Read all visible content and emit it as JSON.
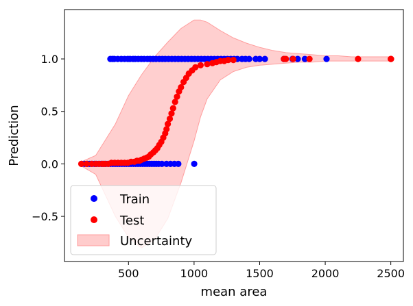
{
  "chart_data": {
    "type": "scatter",
    "xlabel": "mean area",
    "ylabel": "Prediction",
    "xlim": [
      12,
      2596
    ],
    "ylim": [
      -0.93,
      1.47
    ],
    "xticks": [
      500,
      1000,
      1500,
      2000,
      2500
    ],
    "yticks": [
      -0.5,
      0.0,
      0.5,
      1.0
    ],
    "xtick_labels": [
      "500",
      "1000",
      "1500",
      "2000",
      "2500"
    ],
    "ytick_labels": [
      "−0.5",
      "0.0",
      "0.5",
      "1.0"
    ],
    "grid": false,
    "legend_position": "lower-left",
    "colors": {
      "train": "#0000ff",
      "test": "#ff0000",
      "uncertainty": "#ffcccc",
      "uncertainty_edge": "#ff9e9e",
      "train_overlap": "#5a1ab4"
    },
    "series": [
      {
        "name": "Train",
        "kind": "scatter",
        "color": "#0000ff",
        "points": [
          [
            362,
            1
          ],
          [
            378,
            1
          ],
          [
            392,
            1
          ],
          [
            418,
            1
          ],
          [
            445,
            1
          ],
          [
            470,
            1
          ],
          [
            495,
            1
          ],
          [
            512,
            1
          ],
          [
            535,
            1
          ],
          [
            552,
            1
          ],
          [
            575,
            1
          ],
          [
            598,
            1
          ],
          [
            620,
            1
          ],
          [
            645,
            1
          ],
          [
            665,
            1
          ],
          [
            688,
            1
          ],
          [
            710,
            1
          ],
          [
            735,
            1
          ],
          [
            758,
            1
          ],
          [
            780,
            1
          ],
          [
            805,
            1
          ],
          [
            830,
            1
          ],
          [
            855,
            1
          ],
          [
            880,
            1
          ],
          [
            905,
            1
          ],
          [
            930,
            1
          ],
          [
            955,
            1
          ],
          [
            980,
            1
          ],
          [
            1005,
            1
          ],
          [
            1030,
            1
          ],
          [
            1055,
            1
          ],
          [
            1080,
            1
          ],
          [
            1105,
            1
          ],
          [
            1130,
            1
          ],
          [
            1155,
            1
          ],
          [
            1180,
            1
          ],
          [
            1205,
            1
          ],
          [
            1230,
            1
          ],
          [
            1255,
            1
          ],
          [
            1280,
            1
          ],
          [
            1305,
            1
          ],
          [
            1330,
            1
          ],
          [
            1365,
            1
          ],
          [
            1392,
            1
          ],
          [
            1420,
            1
          ],
          [
            1470,
            1
          ],
          [
            1500,
            1
          ],
          [
            1540,
            1
          ],
          [
            1685,
            1
          ],
          [
            1750,
            1
          ],
          [
            1790,
            1
          ],
          [
            1845,
            1
          ],
          [
            2010,
            1
          ],
          [
            143,
            0
          ],
          [
            165,
            0
          ],
          [
            188,
            0
          ],
          [
            205,
            0
          ],
          [
            222,
            0
          ],
          [
            240,
            0
          ],
          [
            258,
            0
          ],
          [
            275,
            0
          ],
          [
            292,
            0
          ],
          [
            310,
            0
          ],
          [
            328,
            0
          ],
          [
            345,
            0
          ],
          [
            362,
            0
          ],
          [
            380,
            0
          ],
          [
            398,
            0
          ],
          [
            415,
            0
          ],
          [
            432,
            0
          ],
          [
            450,
            0
          ],
          [
            468,
            0
          ],
          [
            485,
            0
          ],
          [
            503,
            0
          ],
          [
            520,
            0
          ],
          [
            538,
            0
          ],
          [
            555,
            0
          ],
          [
            572,
            0
          ],
          [
            590,
            0
          ],
          [
            608,
            0
          ],
          [
            625,
            0
          ],
          [
            642,
            0
          ],
          [
            660,
            0
          ],
          [
            678,
            0
          ],
          [
            695,
            0
          ],
          [
            712,
            0
          ],
          [
            730,
            0
          ],
          [
            755,
            0
          ],
          [
            790,
            0
          ],
          [
            820,
            0
          ],
          [
            850,
            0
          ],
          [
            880,
            0
          ],
          [
            1001,
            0
          ]
        ]
      },
      {
        "name": "Test",
        "kind": "scatter",
        "color": "#ff0000",
        "points": [
          [
            140,
            0.0
          ],
          [
            180,
            0.0
          ],
          [
            220,
            0.0
          ],
          [
            250,
            0.0
          ],
          [
            275,
            0.0
          ],
          [
            300,
            0.0
          ],
          [
            320,
            0.0
          ],
          [
            345,
            0.0
          ],
          [
            370,
            0.01
          ],
          [
            395,
            0.01
          ],
          [
            420,
            0.01
          ],
          [
            445,
            0.01
          ],
          [
            470,
            0.01
          ],
          [
            495,
            0.01
          ],
          [
            520,
            0.02
          ],
          [
            545,
            0.02
          ],
          [
            565,
            0.03
          ],
          [
            585,
            0.03
          ],
          [
            600,
            0.04
          ],
          [
            620,
            0.05
          ],
          [
            640,
            0.06
          ],
          [
            655,
            0.07
          ],
          [
            670,
            0.09
          ],
          [
            690,
            0.11
          ],
          [
            705,
            0.13
          ],
          [
            720,
            0.15
          ],
          [
            735,
            0.18
          ],
          [
            750,
            0.21
          ],
          [
            765,
            0.25
          ],
          [
            780,
            0.29
          ],
          [
            790,
            0.33
          ],
          [
            800,
            0.38
          ],
          [
            815,
            0.43
          ],
          [
            828,
            0.48
          ],
          [
            840,
            0.53
          ],
          [
            855,
            0.59
          ],
          [
            870,
            0.64
          ],
          [
            885,
            0.69
          ],
          [
            900,
            0.73
          ],
          [
            920,
            0.78
          ],
          [
            940,
            0.82
          ],
          [
            960,
            0.86
          ],
          [
            985,
            0.89
          ],
          [
            1010,
            0.92
          ],
          [
            1050,
            0.94
          ],
          [
            1100,
            0.95
          ],
          [
            1140,
            0.96
          ],
          [
            1170,
            0.97
          ],
          [
            1200,
            0.98
          ],
          [
            1230,
            0.98
          ],
          [
            1260,
            0.99
          ],
          [
            1300,
            0.99
          ],
          [
            1685,
            1.0
          ],
          [
            1700,
            1.0
          ],
          [
            1755,
            1.0
          ],
          [
            1880,
            1.0
          ],
          [
            2250,
            1.0
          ],
          [
            2500,
            1.0
          ],
          [
            2502,
            1.0
          ]
        ]
      }
    ],
    "uncertainty": {
      "name": "Uncertainty",
      "kind": "band",
      "color": "#ffcccc",
      "x": [
        140,
        250,
        400,
        500,
        600,
        700,
        800,
        900,
        1000,
        1050,
        1100,
        1200,
        1300,
        1400,
        1500,
        1600,
        1700,
        1800,
        1900,
        2000,
        2100,
        2200,
        2300,
        2400,
        2500
      ],
      "upper": [
        0.02,
        0.08,
        0.38,
        0.65,
        0.85,
        1.02,
        1.16,
        1.29,
        1.37,
        1.37,
        1.35,
        1.27,
        1.2,
        1.15,
        1.11,
        1.08,
        1.06,
        1.05,
        1.04,
        1.03,
        1.03,
        1.02,
        1.02,
        1.02,
        1.02
      ],
      "lower": [
        -0.02,
        -0.1,
        -0.5,
        -0.7,
        -0.8,
        -0.72,
        -0.52,
        -0.18,
        0.22,
        0.45,
        0.62,
        0.8,
        0.88,
        0.92,
        0.94,
        0.95,
        0.96,
        0.97,
        0.97,
        0.98,
        0.98,
        0.98,
        0.98,
        0.98,
        0.98
      ]
    }
  }
}
